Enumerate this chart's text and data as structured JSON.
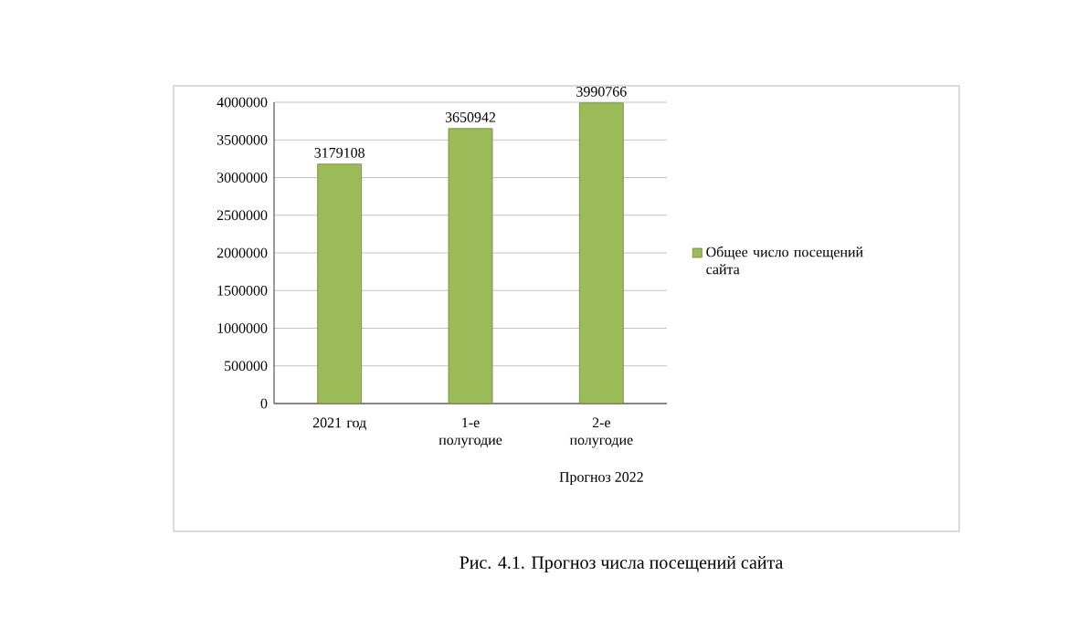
{
  "chart_data": {
    "type": "bar",
    "categories": [
      "2021 год",
      "1-е полугодие",
      "2-е полугодие"
    ],
    "series": [
      {
        "name": "Общее число посещений сайта",
        "color": "#9bbb59",
        "values": [
          3179108,
          3650942,
          3990766
        ]
      }
    ],
    "ylim": [
      0,
      4000000
    ],
    "yticks": [
      0,
      500000,
      1000000,
      1500000,
      2000000,
      2500000,
      3000000,
      3500000,
      4000000
    ],
    "grid": "y",
    "legend": "right",
    "data_labels": true,
    "annotations": [
      "Прогноз 2022",
      "Рис. 4.1. Прогноз числа посещений сайта"
    ]
  }
}
